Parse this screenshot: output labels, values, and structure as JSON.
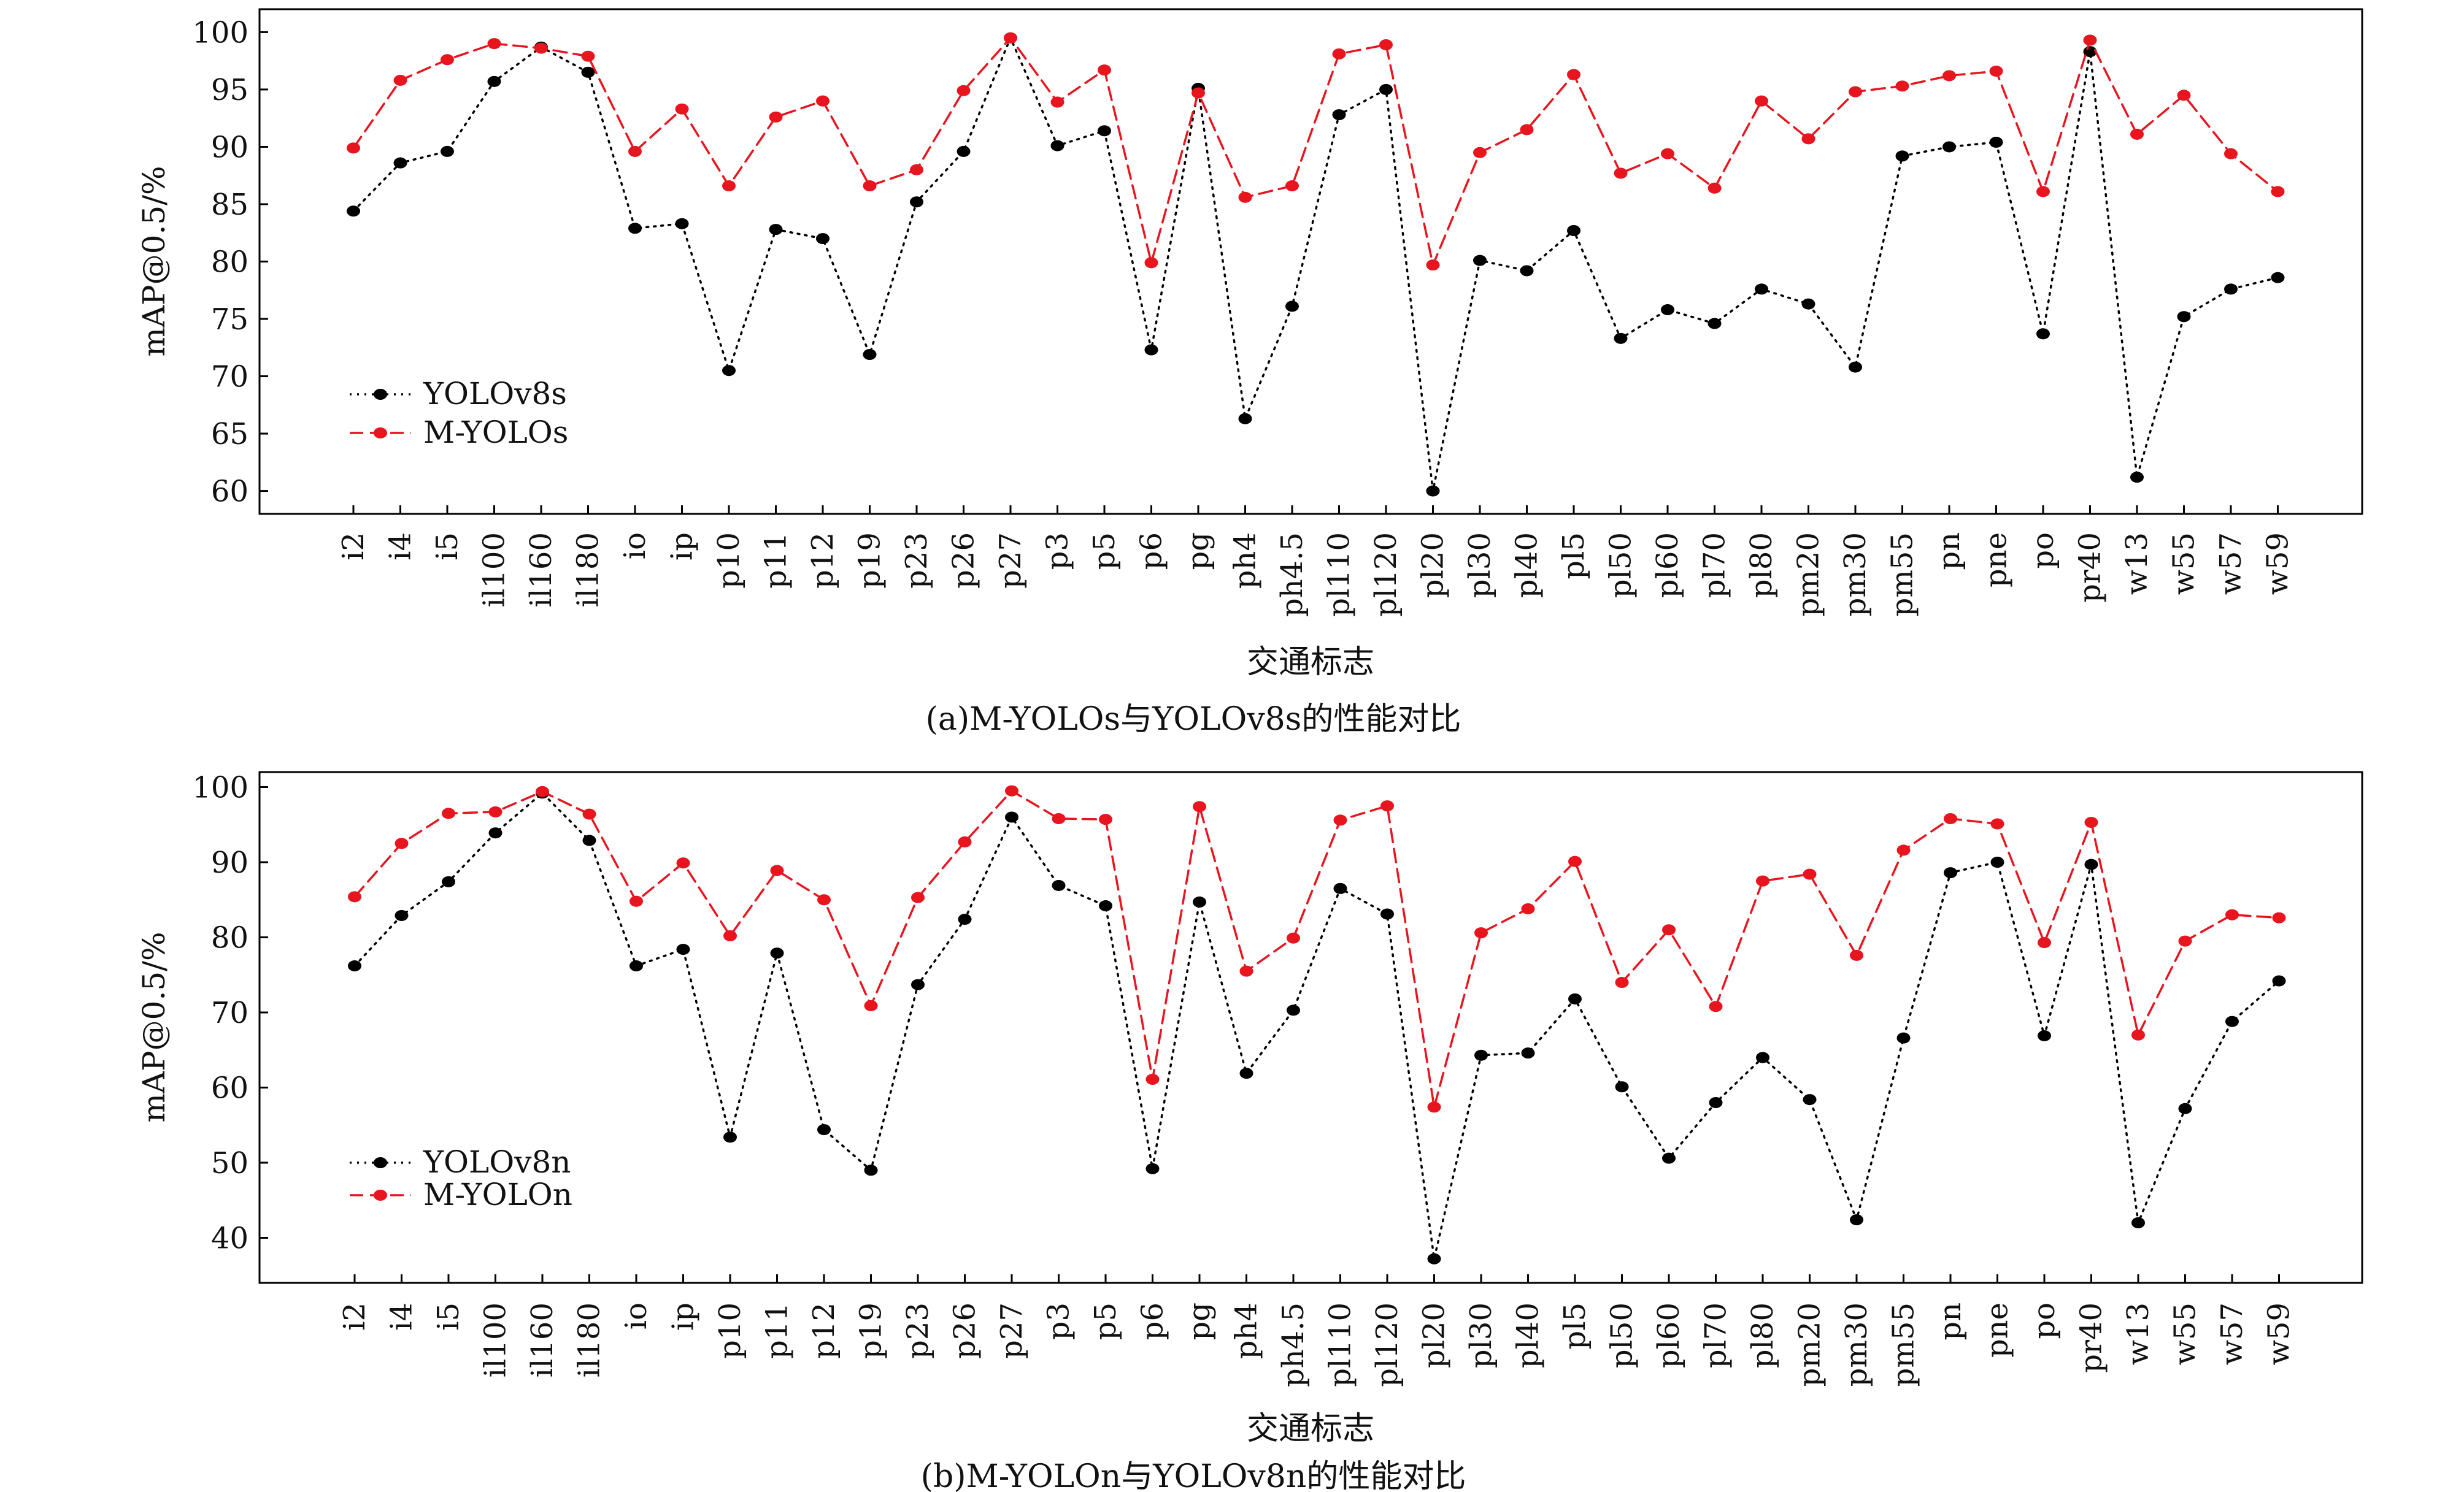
{
  "chart_data": [
    {
      "type": "line",
      "caption": "(a)M-YOLOs与YOLOv8s的性能对比",
      "xlabel": "交通标志",
      "ylabel": "mAP@0.5/%",
      "ylim": [
        58,
        102
      ],
      "yticks": [
        60,
        65,
        70,
        75,
        80,
        85,
        90,
        95,
        100
      ],
      "grid": false,
      "legend_position": "lower-left",
      "categories": [
        "i2",
        "i4",
        "i5",
        "il100",
        "il160",
        "il180",
        "io",
        "ip",
        "p10",
        "p11",
        "p12",
        "p19",
        "p23",
        "p26",
        "p27",
        "p3",
        "p5",
        "p6",
        "pg",
        "ph4",
        "ph4.5",
        "pl110",
        "pl120",
        "pl20",
        "pl30",
        "pl40",
        "pl5",
        "pl50",
        "pl60",
        "pl70",
        "pl80",
        "pm20",
        "pm30",
        "pm55",
        "pn",
        "pne",
        "po",
        "pr40",
        "w13",
        "w55",
        "w57",
        "w59"
      ],
      "series": [
        {
          "name": "YOLOv8s",
          "color": "#000000",
          "line_style": "dotted",
          "values": [
            84.4,
            88.6,
            89.6,
            95.7,
            98.7,
            96.5,
            82.9,
            83.3,
            70.5,
            82.8,
            82.0,
            71.9,
            85.2,
            89.6,
            99.5,
            90.1,
            91.4,
            72.3,
            95.1,
            66.3,
            76.1,
            92.8,
            95.0,
            60.0,
            80.1,
            79.2,
            82.7,
            73.3,
            75.8,
            74.6,
            77.6,
            76.3,
            70.8,
            89.2,
            90.0,
            90.4,
            73.7,
            98.3,
            61.2,
            75.2,
            77.6,
            78.6
          ]
        },
        {
          "name": "M-YOLOs",
          "color": "#e8141e",
          "line_style": "dashed",
          "values": [
            89.9,
            95.8,
            97.6,
            99.0,
            98.6,
            97.9,
            89.6,
            93.3,
            86.6,
            92.6,
            94.0,
            86.6,
            88.0,
            94.9,
            99.5,
            93.9,
            96.7,
            79.9,
            94.7,
            85.6,
            86.6,
            98.1,
            98.9,
            79.7,
            89.5,
            91.5,
            96.3,
            87.7,
            89.4,
            86.4,
            94.0,
            90.7,
            94.8,
            95.3,
            96.2,
            96.6,
            86.1,
            99.3,
            91.1,
            94.5,
            89.4,
            86.1
          ]
        }
      ]
    },
    {
      "type": "line",
      "caption": "(b)M-YOLOn与YOLOv8n的性能对比",
      "xlabel": "交通标志",
      "ylabel": "mAP@0.5/%",
      "ylim": [
        34,
        102
      ],
      "yticks": [
        40,
        50,
        60,
        70,
        80,
        90,
        100
      ],
      "grid": false,
      "legend_position": "lower-left",
      "categories": [
        "i2",
        "i4",
        "i5",
        "il100",
        "il160",
        "il180",
        "io",
        "ip",
        "p10",
        "p11",
        "p12",
        "p19",
        "p23",
        "p26",
        "p27",
        "p3",
        "p5",
        "p6",
        "pg",
        "ph4",
        "ph4.5",
        "pl110",
        "pl120",
        "pl20",
        "pl30",
        "pl40",
        "pl5",
        "pl50",
        "pl60",
        "pl70",
        "pl80",
        "pm20",
        "pm30",
        "pm55",
        "pn",
        "pne",
        "po",
        "pr40",
        "w13",
        "w55",
        "w57",
        "w59"
      ],
      "series": [
        {
          "name": "YOLOv8n",
          "color": "#000000",
          "line_style": "dotted",
          "values": [
            76.2,
            82.9,
            87.4,
            93.9,
            99.2,
            92.9,
            76.2,
            78.4,
            53.4,
            77.9,
            54.4,
            49.0,
            73.7,
            82.4,
            96.0,
            86.9,
            84.2,
            49.2,
            84.7,
            61.9,
            70.3,
            86.5,
            83.1,
            37.2,
            64.3,
            64.6,
            71.8,
            60.1,
            50.6,
            58.0,
            64.0,
            58.4,
            42.4,
            66.6,
            88.6,
            90.0,
            66.9,
            89.7,
            42.0,
            57.2,
            68.8,
            74.2
          ]
        },
        {
          "name": "M-YOLOn",
          "color": "#e8141e",
          "line_style": "dashed",
          "values": [
            85.4,
            92.5,
            96.5,
            96.7,
            99.4,
            96.4,
            84.8,
            89.9,
            80.2,
            88.9,
            85.0,
            70.9,
            85.3,
            92.7,
            99.5,
            95.8,
            95.7,
            61.1,
            97.4,
            75.5,
            79.9,
            95.6,
            97.5,
            57.4,
            80.6,
            83.8,
            90.1,
            74.0,
            81.0,
            70.8,
            87.5,
            88.4,
            77.6,
            91.6,
            95.8,
            95.1,
            79.3,
            95.3,
            67.0,
            79.5,
            83.0,
            82.6
          ]
        }
      ]
    }
  ]
}
